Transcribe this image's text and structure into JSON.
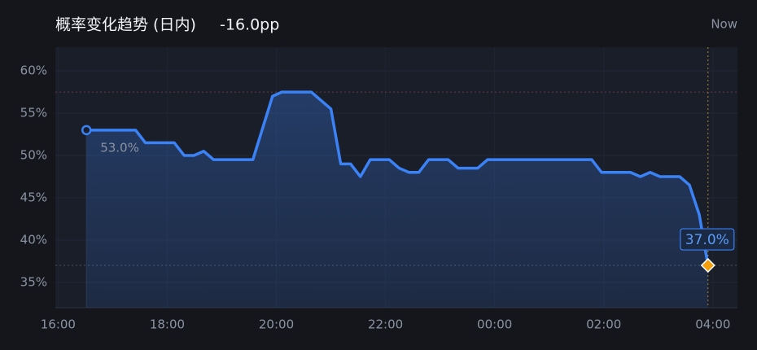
{
  "chart_data": {
    "type": "line",
    "title": "概率变化趋势 (日内)",
    "change": "-16.0pp",
    "now_label": "Now",
    "x": [
      16.52,
      17.42,
      17.6,
      18.13,
      18.31,
      18.49,
      18.67,
      18.85,
      19.57,
      19.93,
      20.1,
      20.64,
      21.0,
      21.18,
      21.36,
      21.54,
      21.72,
      22.07,
      22.25,
      22.43,
      22.61,
      22.79,
      23.15,
      23.33,
      23.69,
      23.87,
      25.78,
      25.96,
      26.49,
      26.67,
      26.85,
      27.03,
      27.39,
      27.57,
      27.75,
      27.91
    ],
    "values": [
      53,
      53,
      51.5,
      51.5,
      50,
      50,
      50.5,
      49.5,
      49.5,
      57,
      57.5,
      57.5,
      55.5,
      49,
      49,
      47.5,
      49.5,
      49.5,
      48.5,
      48,
      48,
      49.5,
      49.5,
      48.5,
      48.5,
      49.5,
      49.5,
      48,
      48,
      47.5,
      48,
      47.5,
      47.5,
      46.5,
      43,
      37
    ],
    "value_labels": [
      "53.0%",
      null,
      null,
      null,
      null,
      null,
      null,
      null,
      null,
      null,
      null,
      null,
      null,
      null,
      null,
      null,
      null,
      null,
      null,
      null,
      null,
      null,
      null,
      null,
      null,
      null,
      null,
      null,
      null,
      null,
      null,
      null,
      null,
      null,
      null,
      "37.0%"
    ],
    "color": "#3b82f6",
    "marker_end_color": "#f59e0b",
    "xlim": [
      15.95,
      28.45
    ],
    "xticks": [
      {
        "value": 16,
        "label": "16:00"
      },
      {
        "value": 18,
        "label": "18:00"
      },
      {
        "value": 20,
        "label": "20:00"
      },
      {
        "value": 22,
        "label": "22:00"
      },
      {
        "value": 24,
        "label": "00:00"
      },
      {
        "value": 26,
        "label": "02:00"
      },
      {
        "value": 28,
        "label": "04:00"
      }
    ],
    "ylim": [
      32,
      62.8
    ],
    "yticks": [
      {
        "value": 35,
        "label": "35%"
      },
      {
        "value": 40,
        "label": "40%"
      },
      {
        "value": 45,
        "label": "45%"
      },
      {
        "value": 50,
        "label": "50%"
      },
      {
        "value": 55,
        "label": "55%"
      },
      {
        "value": 60,
        "label": "60%"
      }
    ],
    "grid": true
  }
}
